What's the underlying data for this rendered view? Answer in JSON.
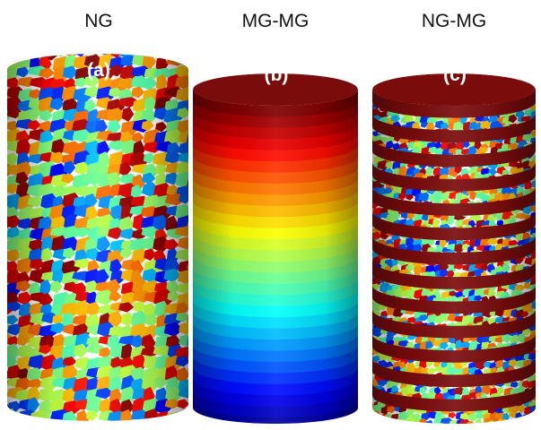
{
  "panels": [
    {
      "title": "NG",
      "label": "(a)"
    },
    {
      "title": "MG-MG",
      "label": "(b)"
    },
    {
      "title": "NG-MG",
      "label": "(c)"
    }
  ]
}
